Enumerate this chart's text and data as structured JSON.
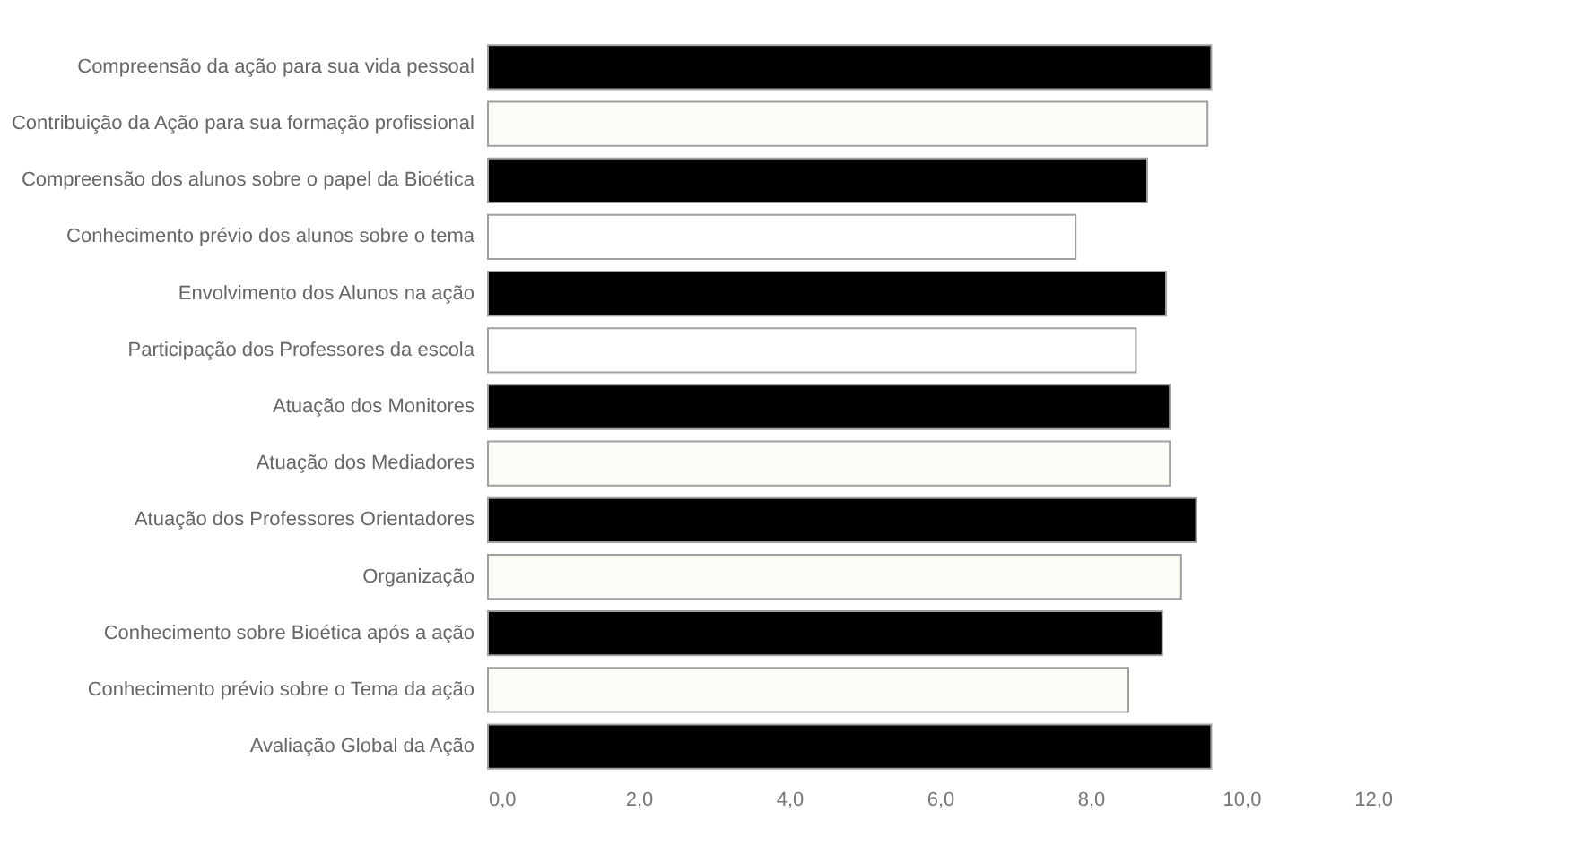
{
  "chart_data": {
    "type": "bar",
    "orientation": "horizontal",
    "categories": [
      "Compreensão da ação para sua vida pessoal",
      "Contribuição da Ação para sua formação profissional",
      "Compreensão dos alunos sobre o papel da Bioética",
      "Conhecimento prévio dos alunos sobre o tema",
      "Envolvimento dos Alunos na ação",
      "Participação dos Professores da escola",
      "Atuação dos Monitores",
      "Atuação dos Mediadores",
      "Atuação dos Professores Orientadores",
      "Organização",
      "Conhecimento sobre Bioética após a ação",
      "Conhecimento prévio sobre o Tema da ação",
      "Avaliação Global da Ação"
    ],
    "values": [
      9.6,
      9.55,
      8.75,
      7.8,
      9.0,
      8.6,
      9.05,
      9.05,
      9.4,
      9.2,
      8.95,
      8.5,
      9.6
    ],
    "colors": [
      "#000000",
      "#fdfdf8",
      "#000000",
      "#ffffff",
      "#000000",
      "#ffffff",
      "#000000",
      "#fdfdf8",
      "#000000",
      "#fdfdf8",
      "#000000",
      "#fdfdf8",
      "#000000"
    ],
    "xlim": [
      0,
      12
    ],
    "xticks": [
      {
        "value": 0,
        "label": "0,0"
      },
      {
        "value": 2,
        "label": "2,0"
      },
      {
        "value": 4,
        "label": "4,0"
      },
      {
        "value": 6,
        "label": "6,0"
      },
      {
        "value": 8,
        "label": "8,0"
      },
      {
        "value": 10,
        "label": "10,0"
      },
      {
        "value": 12,
        "label": "12,0"
      }
    ],
    "grid": false
  }
}
